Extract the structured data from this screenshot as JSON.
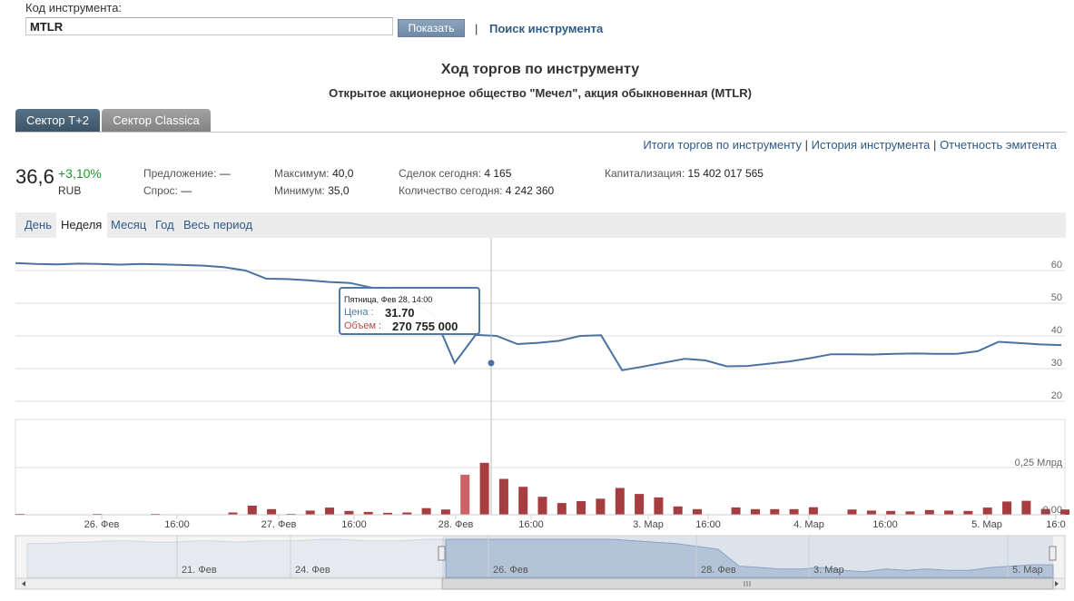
{
  "search": {
    "label": "Код инструмента:",
    "value": "MTLR",
    "show_button": "Показать",
    "separator": "|",
    "search_link": "Поиск инструмента"
  },
  "title": "Ход торгов по инструменту",
  "subtitle": "Открытое акционерное общество \"Мечел\", акция обыкновенная (MTLR)",
  "tabs": [
    {
      "label": "Сектор Т+2",
      "active": true
    },
    {
      "label": "Сектор Classica",
      "active": false
    }
  ],
  "links": {
    "results": "Итоги торгов по инструменту",
    "history": "История инструмента",
    "reports": "Отчетность эмитента",
    "sep": "|"
  },
  "quote": {
    "price": "36,6",
    "change": "+3,10%",
    "currency": "RUB",
    "offer_label": "Предложение:",
    "offer_value": "—",
    "bid_label": "Спрос:",
    "bid_value": "—",
    "max_label": "Максимум:",
    "max_value": "40,0",
    "min_label": "Минимум:",
    "min_value": "35,0",
    "deals_label": "Сделок сегодня:",
    "deals_value": "4 165",
    "qty_label": "Количество сегодня:",
    "qty_value": "4 242 360",
    "cap_label": "Капитализация:",
    "cap_value": "15 402 017 565"
  },
  "periods": [
    "День",
    "Неделя",
    "Месяц",
    "Год",
    "Весь период"
  ],
  "active_period": "Неделя",
  "chart_data": {
    "type": "line",
    "price": {
      "values": [
        62.3,
        62.0,
        61.9,
        62.1,
        62.0,
        61.8,
        62.0,
        61.9,
        61.7,
        61.5,
        61.0,
        60.0,
        57.5,
        57.4,
        57.0,
        56.5,
        56.2,
        54.8,
        53.5,
        50.5,
        46.5,
        31.7,
        40.3,
        40.0,
        37.5,
        37.9,
        38.5,
        40.0,
        40.2,
        29.5,
        30.6,
        31.8,
        33.0,
        32.5,
        30.7,
        30.8,
        31.5,
        32.2,
        33.2,
        34.4,
        34.4,
        34.3,
        34.5,
        34.6,
        34.5,
        34.5,
        35.3,
        38.2,
        37.8,
        37.4,
        37.2
      ],
      "y_ticks": [
        "60",
        "50",
        "40",
        "30",
        "20"
      ],
      "ylim": [
        17,
        66
      ]
    },
    "volume": {
      "values_mln": [
        5,
        0,
        0,
        0,
        5,
        0,
        0,
        5,
        0,
        0,
        0,
        12,
        48,
        30,
        5,
        22,
        38,
        20,
        15,
        10,
        12,
        35,
        28,
        212,
        275,
        190,
        148,
        95,
        62,
        72,
        85,
        142,
        110,
        92,
        44,
        30,
        0,
        39,
        30,
        30,
        30,
        40,
        0,
        28,
        22,
        20,
        18,
        25,
        22,
        20,
        38,
        70,
        74,
        31,
        28
      ],
      "highlight_index": 23,
      "y_ticks": [
        "0,25 Млрд",
        "0,00"
      ],
      "ylim_mln": [
        0,
        420
      ]
    },
    "x_ticks": [
      "26. Фев",
      "16:00",
      "27. Фев",
      "16:00",
      "28. Фев",
      "16:00",
      "3. Мар",
      "16:00",
      "4. Мар",
      "16:00",
      "5. Мар",
      "16:0"
    ],
    "navigator_ticks": [
      "21. Фев",
      "24. Фев",
      "26. Фев",
      "28. Фев",
      "3. Мар",
      "5. Мар"
    ],
    "navigator_values": [
      52,
      52,
      53,
      53,
      54,
      54,
      53,
      53,
      54,
      54,
      53,
      54,
      54,
      54,
      55,
      55,
      54,
      54,
      54,
      55,
      55,
      55,
      55,
      55,
      55,
      55,
      55,
      55,
      55,
      54,
      53,
      52,
      50,
      48,
      36,
      35,
      34,
      34,
      35,
      33,
      32,
      34,
      33,
      34,
      33,
      33,
      35,
      36,
      37,
      37
    ],
    "tooltip": {
      "date": "Пятница, Фев 28, 14:00",
      "price_label": "Цена :",
      "price_value": "31.70",
      "volume_label": "Объем :",
      "volume_value": "270 755 000"
    },
    "colors": {
      "price_line": "#4a72a0",
      "volume_bar": "#a63d40",
      "volume_highlight": "#cc6266",
      "navigator_fill": "#b3c4d9"
    }
  }
}
